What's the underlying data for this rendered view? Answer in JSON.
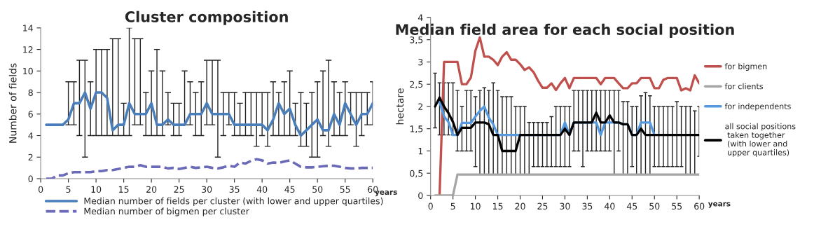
{
  "chart_data": [
    {
      "type": "line",
      "title": "Cluster composition",
      "xlabel": "years",
      "ylabel": "Number of fields",
      "x": [
        1,
        2,
        3,
        4,
        5,
        6,
        7,
        8,
        9,
        10,
        11,
        12,
        13,
        14,
        15,
        16,
        17,
        18,
        19,
        20,
        21,
        22,
        23,
        24,
        25,
        26,
        27,
        28,
        29,
        30,
        31,
        32,
        33,
        34,
        35,
        36,
        37,
        38,
        39,
        40,
        41,
        42,
        43,
        44,
        45,
        46,
        47,
        48,
        49,
        50,
        51,
        52,
        53,
        54,
        55,
        56,
        57,
        58,
        59,
        60
      ],
      "xlim": [
        0,
        60
      ],
      "xticks": [
        0,
        5,
        10,
        15,
        20,
        25,
        30,
        35,
        40,
        45,
        50,
        55,
        60
      ],
      "ylim": [
        0,
        14
      ],
      "yticks": [
        0,
        2,
        4,
        6,
        8,
        10,
        12,
        14
      ],
      "legend": "bottom",
      "grid": false,
      "series": [
        {
          "name": "Median number of fields per cluster (with lower and upper quartiles)",
          "color": "#4a7ebb",
          "line_style": "solid",
          "values": [
            5,
            5,
            5,
            5,
            5.5,
            7,
            7,
            8,
            6.5,
            8,
            8,
            7.5,
            4.5,
            5,
            5,
            7,
            6,
            6,
            6,
            7,
            5,
            5,
            5.5,
            5,
            5,
            5,
            6,
            6,
            6,
            7,
            6,
            6,
            6,
            6,
            5,
            5,
            5,
            5,
            5,
            5,
            4.5,
            5.5,
            7,
            6,
            6.5,
            5,
            4,
            4.5,
            5,
            5.5,
            4.5,
            4.5,
            6,
            5,
            7,
            6,
            5,
            6,
            6,
            7
          ],
          "errors": [
            null,
            null,
            null,
            null,
            [
              5,
              9
            ],
            [
              5,
              9
            ],
            [
              4,
              11
            ],
            [
              2,
              11
            ],
            [
              4,
              9
            ],
            [
              4,
              12
            ],
            [
              4,
              12
            ],
            [
              4,
              12
            ],
            [
              4,
              13
            ],
            [
              4,
              13
            ],
            [
              4,
              7
            ],
            [
              4,
              14
            ],
            [
              5,
              13
            ],
            [
              5,
              13
            ],
            [
              4,
              8
            ],
            [
              4,
              10
            ],
            [
              4,
              12
            ],
            [
              4,
              10
            ],
            [
              5,
              8
            ],
            [
              4,
              7
            ],
            [
              4,
              7
            ],
            [
              5,
              10
            ],
            [
              5,
              9
            ],
            [
              4,
              8
            ],
            [
              4,
              9
            ],
            [
              5,
              11
            ],
            [
              5,
              11
            ],
            [
              2,
              11
            ],
            [
              4,
              8
            ],
            [
              5,
              8
            ],
            [
              4,
              8
            ],
            [
              4,
              7
            ],
            [
              4,
              8
            ],
            [
              4,
              8
            ],
            [
              3,
              8
            ],
            [
              4,
              8
            ],
            [
              3,
              8
            ],
            [
              4,
              9
            ],
            [
              4,
              8
            ],
            [
              4,
              9
            ],
            [
              4,
              10
            ],
            [
              4,
              7
            ],
            [
              3,
              8
            ],
            [
              3,
              7
            ],
            [
              2,
              8
            ],
            [
              2,
              9
            ],
            [
              4,
              10
            ],
            [
              3,
              11
            ],
            [
              4,
              9
            ],
            [
              4,
              8
            ],
            [
              4,
              9
            ],
            [
              5,
              8
            ],
            [
              3,
              8
            ],
            [
              4,
              8
            ],
            [
              5,
              8
            ],
            [
              5,
              9
            ]
          ]
        },
        {
          "name": "Median number of bigmen per cluster",
          "color": "#6a6ab8",
          "line_style": "dashed",
          "values": [
            0,
            0,
            0.3,
            0.3,
            0.5,
            0.6,
            0.6,
            0.6,
            0.6,
            0.7,
            0.7,
            0.8,
            0.8,
            0.9,
            1.0,
            1.1,
            1.1,
            1.25,
            1.1,
            1.1,
            1.1,
            1.1,
            0.95,
            1.0,
            0.9,
            1.0,
            1.1,
            1.0,
            1.05,
            1.1,
            1.0,
            0.95,
            1.05,
            1.2,
            1.1,
            1.5,
            1.4,
            1.65,
            1.8,
            1.7,
            1.4,
            1.5,
            1.45,
            1.6,
            1.7,
            1.4,
            1.1,
            1.05,
            1.05,
            1.1,
            1.15,
            1.2,
            1.2,
            1.1,
            1.0,
            0.95,
            0.95,
            1.0,
            1.0,
            1.0
          ]
        }
      ]
    },
    {
      "type": "line",
      "title": "Median field area for each social position",
      "xlabel": "years",
      "ylabel": "hectare",
      "x": [
        1,
        2,
        3,
        4,
        5,
        6,
        7,
        8,
        9,
        10,
        11,
        12,
        13,
        14,
        15,
        16,
        17,
        18,
        19,
        20,
        21,
        22,
        23,
        24,
        25,
        26,
        27,
        28,
        29,
        30,
        31,
        32,
        33,
        34,
        35,
        36,
        37,
        38,
        39,
        40,
        41,
        42,
        43,
        44,
        45,
        46,
        47,
        48,
        49,
        50,
        51,
        52,
        53,
        54,
        55,
        56,
        57,
        58,
        59,
        60
      ],
      "xlim": [
        0,
        60
      ],
      "xticks": [
        {
          "value": 0,
          "label": "0"
        },
        {
          "value": 5,
          "label": "5"
        },
        {
          "value": 10,
          "label": "10"
        },
        {
          "value": 15,
          "label": "15"
        },
        {
          "value": 20,
          "label": "20"
        },
        {
          "value": 25,
          "label": "25"
        },
        {
          "value": 30,
          "label": "30"
        },
        {
          "value": 35,
          "label": "35"
        },
        {
          "value": 40,
          "label": "40"
        },
        {
          "value": 45,
          "label": "45"
        },
        {
          "value": 50,
          "label": "50"
        },
        {
          "value": 55,
          "label": "55"
        },
        {
          "value": 60,
          "label": "60"
        }
      ],
      "ylim": [
        0,
        4
      ],
      "yticks": [
        0,
        {
          "value": 0.5,
          "label": "0,5"
        },
        1,
        {
          "value": 1.5,
          "label": "1,5"
        },
        2,
        {
          "value": 2.5,
          "label": "2,5"
        },
        3,
        {
          "value": 3.5,
          "label": "3,5"
        },
        4
      ],
      "legend": "right",
      "grid": false,
      "series": [
        {
          "name": "for bigmen",
          "color": "#c0504d",
          "line_style": "solid",
          "values": [
            null,
            0,
            3,
            3,
            3,
            3,
            2.5,
            2.5,
            2.65,
            3.25,
            3.55,
            3.12,
            3.12,
            3.05,
            2.93,
            3.12,
            3.22,
            3.05,
            3.05,
            2.95,
            2.82,
            2.88,
            2.77,
            2.58,
            2.42,
            2.42,
            2.52,
            2.37,
            2.52,
            2.64,
            2.41,
            2.64,
            2.64,
            2.64,
            2.64,
            2.64,
            2.64,
            2.5,
            2.64,
            2.64,
            2.64,
            2.52,
            2.41,
            2.41,
            2.52,
            2.52,
            2.64,
            2.64,
            2.64,
            2.41,
            2.41,
            2.6,
            2.64,
            2.64,
            2.64,
            2.36,
            2.41,
            2.36,
            2.7,
            2.52
          ]
        },
        {
          "name": "for clients",
          "color": "#a6a6a6",
          "line_style": "solid",
          "values": [
            0,
            0,
            0,
            0,
            0,
            0.47,
            0.47,
            0.47,
            0.47,
            0.47,
            0.47,
            0.47,
            0.47,
            0.47,
            0.47,
            0.47,
            0.47,
            0.47,
            0.47,
            0.47,
            0.47,
            0.47,
            0.47,
            0.47,
            0.47,
            0.47,
            0.47,
            0.47,
            0.47,
            0.47,
            0.47,
            0.47,
            0.47,
            0.47,
            0.47,
            0.47,
            0.47,
            0.47,
            0.47,
            0.47,
            0.47,
            0.47,
            0.47,
            0.47,
            0.47,
            0.47,
            0.47,
            0.47,
            0.47,
            0.47,
            0.47,
            0.47,
            0.47,
            0.47,
            0.47,
            0.47,
            0.47,
            0.47,
            0.47,
            0.47
          ]
        },
        {
          "name": "for independents",
          "color": "#559ae0",
          "line_style": "solid",
          "values": [
            null,
            2.1,
            1.78,
            1.65,
            1.36,
            1.36,
            1.63,
            1.63,
            1.63,
            1.77,
            1.9,
            2.0,
            1.75,
            1.6,
            1.36,
            1.36,
            1.36,
            1.36,
            1.36,
            1.36,
            1.36,
            1.36,
            1.36,
            1.36,
            1.36,
            1.36,
            1.36,
            1.36,
            1.36,
            1.64,
            1.36,
            1.64,
            1.64,
            1.64,
            1.64,
            1.64,
            1.64,
            1.36,
            1.64,
            1.64,
            1.64,
            1.64,
            1.6,
            1.6,
            1.36,
            1.36,
            1.64,
            1.64,
            1.64,
            1.36,
            null,
            null,
            null,
            null,
            null,
            null,
            null,
            null,
            null,
            null
          ]
        },
        {
          "name": "all social positions\n taken together\n (with lower and\n upper quartiles)",
          "color": "#000000",
          "line_style": "solid",
          "values": [
            2.0,
            2.2,
            2.0,
            1.85,
            1.65,
            1.36,
            1.52,
            1.52,
            1.52,
            1.64,
            1.64,
            1.64,
            1.6,
            1.36,
            1.36,
            1.0,
            1.0,
            1.0,
            1.0,
            1.36,
            1.36,
            1.36,
            1.36,
            1.36,
            1.36,
            1.36,
            1.36,
            1.36,
            1.36,
            1.5,
            1.36,
            1.64,
            1.64,
            1.64,
            1.64,
            1.64,
            1.86,
            1.64,
            1.64,
            1.8,
            1.64,
            1.64,
            1.6,
            1.6,
            1.36,
            1.36,
            1.5,
            1.36,
            1.36,
            1.36,
            1.36,
            1.36,
            1.36,
            1.36,
            1.36,
            1.36,
            1.36,
            1.36,
            1.36,
            1.36
          ],
          "errors": [
            [
              1.52,
              2.75
            ],
            [
              1.36,
              2.53
            ],
            [
              1.36,
              2.53
            ],
            [
              1.36,
              2.53
            ],
            [
              1.36,
              2.53
            ],
            [
              1.0,
              2.36
            ],
            [
              1.0,
              2.0
            ],
            [
              1.0,
              2.36
            ],
            [
              1.0,
              2.36
            ],
            [
              0.65,
              2.22
            ],
            [
              0.47,
              2.36
            ],
            [
              0.47,
              2.42
            ],
            [
              0.47,
              2.36
            ],
            [
              0.47,
              2.53
            ],
            [
              0.47,
              2.36
            ],
            [
              0.47,
              2.22
            ],
            [
              0.47,
              2.22
            ],
            [
              0.47,
              2.22
            ],
            [
              0.47,
              2.0
            ],
            [
              0.47,
              2.0
            ],
            [
              0.47,
              2.0
            ],
            [
              0.47,
              1.64
            ],
            [
              0.65,
              1.64
            ],
            [
              0.65,
              1.64
            ],
            [
              0.65,
              1.64
            ],
            [
              0.65,
              1.64
            ],
            [
              0.65,
              1.77
            ],
            [
              0.65,
              2.0
            ],
            [
              0.65,
              2.0
            ],
            [
              0.65,
              2.0
            ],
            [
              0.65,
              2.0
            ],
            [
              1.0,
              2.36
            ],
            [
              1.0,
              2.36
            ],
            [
              0.65,
              2.36
            ],
            [
              1.0,
              2.36
            ],
            [
              1.0,
              2.36
            ],
            [
              1.0,
              2.36
            ],
            [
              1.0,
              2.36
            ],
            [
              1.0,
              2.36
            ],
            [
              1.0,
              2.36
            ],
            [
              0.47,
              2.36
            ],
            [
              1.0,
              2.36
            ],
            [
              0.47,
              2.11
            ],
            [
              0.47,
              2.11
            ],
            [
              0.65,
              2.0
            ],
            [
              0.47,
              2.0
            ],
            [
              0.47,
              2.24
            ],
            [
              0.47,
              2.31
            ],
            [
              0.47,
              2.24
            ],
            [
              0.65,
              2.0
            ],
            [
              0.65,
              2.0
            ],
            [
              0.65,
              2.0
            ],
            [
              0.65,
              2.0
            ],
            [
              0.65,
              2.0
            ],
            [
              0.65,
              2.11
            ],
            [
              0.65,
              2.0
            ],
            [
              0.47,
              2.0
            ],
            [
              0.47,
              2.0
            ],
            [
              0.47,
              1.9
            ],
            [
              0.88,
              2.0
            ]
          ]
        }
      ]
    }
  ]
}
